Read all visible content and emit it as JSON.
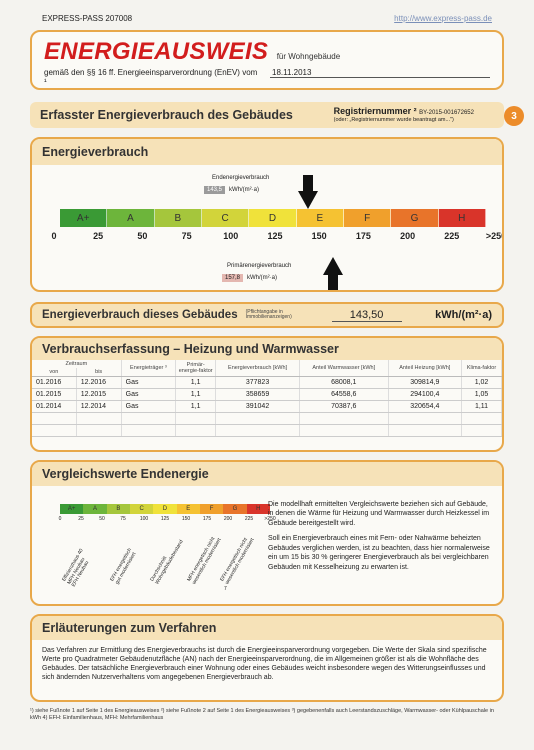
{
  "top": {
    "label": "EXPRESS-PASS 207008",
    "url": "http://www.express-pass.de"
  },
  "title": {
    "main": "ENERGIEAUSWEIS",
    "sub": "für Wohngebäude",
    "line": "gemäß den §§ 16 ff. Energieeinsparverordnung (EnEV) vom ¹",
    "date": "18.11.2013"
  },
  "reg": {
    "heading": "Erfasster Energieverbrauch des Gebäudes",
    "label": "Registriernummer ²",
    "value": "BY-2015-001672652",
    "note": "(oder: „Registriernummer wurde beantragt am...\")",
    "page": "3"
  },
  "ev": {
    "heading": "Energieverbrauch",
    "end_label": "Endenergieverbrauch",
    "end_value": "143,5",
    "end_unit": "kWh/(m²·a)",
    "prim_label": "Primärenergieverbrauch",
    "prim_value": "157,8",
    "prim_unit": "kWh/(m²·a)",
    "classes": [
      "A+",
      "A",
      "B",
      "C",
      "D",
      "E",
      "F",
      "G",
      "H"
    ],
    "class_colors": [
      "#3a9a35",
      "#6db53b",
      "#a5c63c",
      "#d2d43a",
      "#f0e23a",
      "#f5c232",
      "#f0a02c",
      "#e8742a",
      "#d9342a"
    ],
    "ticks": [
      "0",
      "25",
      "50",
      "75",
      "100",
      "125",
      "150",
      "175",
      "200",
      "225",
      ">250"
    ],
    "end_arrow_value": 143.5,
    "prim_arrow_value": 157.8
  },
  "own": {
    "heading": "Energieverbrauch dieses Gebäudes",
    "note": "(Pflichtangabe in Immobilienanzeigen)",
    "value": "143,50",
    "unit": "kWh/(m²·a)"
  },
  "vb": {
    "heading": "Verbrauchserfassung – Heizung und Warmwasser",
    "headers": {
      "zeitraum": "Zeitraum",
      "von": "von",
      "bis": "bis",
      "traeger": "Energieträger ³",
      "faktor": "Primär-energie-faktor",
      "verbrauch": "Energieverbrauch [kWh]",
      "ww": "Anteil Warmwasser [kWh]",
      "heiz": "Anteil Heizung [kWh]",
      "klima": "Klima-faktor"
    },
    "rows": [
      [
        "01.2016",
        "12.2016",
        "Gas",
        "1,1",
        "377823",
        "68008,1",
        "309814,9",
        "1,02"
      ],
      [
        "01.2015",
        "12.2015",
        "Gas",
        "1,1",
        "358659",
        "64558,6",
        "294100,4",
        "1,05"
      ],
      [
        "01.2014",
        "12.2014",
        "Gas",
        "1,1",
        "391042",
        "70387,6",
        "320654,4",
        "1,11"
      ]
    ]
  },
  "vg": {
    "heading": "Vergleichswerte Endenergie",
    "ticks": [
      "0",
      "25",
      "50",
      "75",
      "100",
      "125",
      "150",
      "175",
      "200",
      "225",
      ">250"
    ],
    "refs": [
      "Effizienzhaus 40\nMFH Neubau\nEFH Neubau",
      "EFH energetisch\ngut modernisiert",
      "Durchschnitt\nWohngebäudebestand",
      "MFH energetisch nicht\nwesentlich modernisiert",
      "EFH energetisch nicht\nwesentlich modernisiert"
    ],
    "p1": "Die modellhaft ermittelten Vergleichswerte beziehen sich auf Gebäude, in denen die Wärme für Heizung und Warmwasser durch Heizkessel im Gebäude bereitgestellt wird.",
    "p2": "Soll ein Energieverbrauch eines mit Fern- oder Nahwärme beheizten Gebäudes verglichen werden, ist zu beachten, dass hier normalerweise ein um 15 bis 30 % geringerer Energieverbrauch als bei vergleichbaren Gebäuden mit Kesselheizung zu erwarten ist.",
    "page_no": "7"
  },
  "erl": {
    "heading": "Erläuterungen zum Verfahren",
    "text": "Das Verfahren zur Ermittlung des Energieverbrauchs ist durch die Energieeinsparverordnung vorgegeben. Die Werte der Skala sind spezifische Werte pro Quadratmeter Gebäudenutzfläche (AN) nach der Energieeinsparverordnung, die im Allgemeinen größer ist als die Wohnfläche des Gebäudes. Der tatsächliche Energieverbrauch einer Wohnung oder eines Gebäudes weicht insbesondere wegen des Witterungseinflusses und sich ändernden Nutzerverhaltens vom angegebenen Energieverbrauch ab."
  },
  "footnote": "¹) siehe Fußnote 1 auf Seite 1 des Energieausweises    ²) siehe Fußnote 2 auf Seite 1 des Energieausweises    ³) gegebenenfalls auch Leerstandszuschläge, Warmwasser- oder Kühlpauschale in kWh    4) EFH: Einfamilienhaus, MFH: Mehrfamilienhaus"
}
